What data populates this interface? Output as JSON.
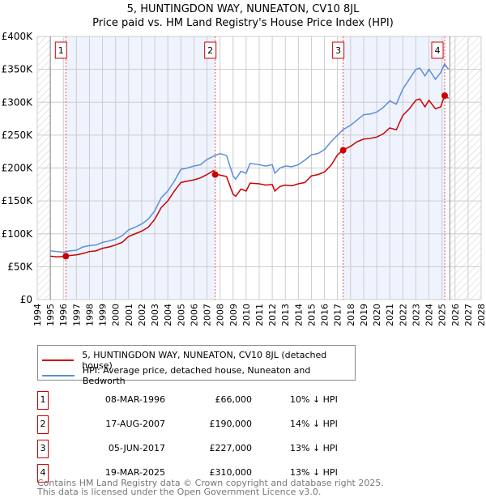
{
  "chart_data": {
    "type": "line",
    "title": "5, HUNTINGDON WAY, NUNEATON, CV10 8JL",
    "subtitle": "Price paid vs. HM Land Registry's House Price Index (HPI)",
    "xlim": [
      1994,
      2028
    ],
    "ylim": [
      0,
      400000
    ],
    "yticks": [
      {
        "v": 0,
        "label": "£0"
      },
      {
        "v": 50000,
        "label": "£50K"
      },
      {
        "v": 100000,
        "label": "£100K"
      },
      {
        "v": 150000,
        "label": "£150K"
      },
      {
        "v": 200000,
        "label": "£200K"
      },
      {
        "v": 250000,
        "label": "£250K"
      },
      {
        "v": 300000,
        "label": "£300K"
      },
      {
        "v": 350000,
        "label": "£350K"
      },
      {
        "v": 400000,
        "label": "£400K"
      }
    ],
    "xticks": [
      "1994",
      "1995",
      "1996",
      "1997",
      "1998",
      "1999",
      "2000",
      "2001",
      "2002",
      "2003",
      "2004",
      "2005",
      "2006",
      "2007",
      "2008",
      "2009",
      "2010",
      "2011",
      "2012",
      "2013",
      "2014",
      "2015",
      "2016",
      "2017",
      "2018",
      "2019",
      "2020",
      "2021",
      "2022",
      "2023",
      "2024",
      "2025",
      "2026",
      "2027",
      "2028"
    ],
    "grid": true,
    "data_range": [
      1995,
      2025.6
    ],
    "series": [
      {
        "name": "5, HUNTINGDON WAY, NUNEATON, CV10 8JL (detached house)",
        "color": "#cc0000",
        "x": [
          1995,
          1995.5,
          1996,
          1996.5,
          1997,
          1997.5,
          1998,
          1998.5,
          1999,
          1999.5,
          2000,
          2000.5,
          2001,
          2001.5,
          2002,
          2002.5,
          2003,
          2003.5,
          2004,
          2004.5,
          2005,
          2005.5,
          2006,
          2006.5,
          2007,
          2007.5,
          2007.8,
          2008.5,
          2009,
          2009.2,
          2009.6,
          2010,
          2010.3,
          2011,
          2011.5,
          2012,
          2012.2,
          2012.6,
          2013,
          2013.5,
          2014,
          2014.5,
          2015,
          2015.5,
          2016,
          2016.5,
          2017,
          2017.4,
          2018,
          2018.5,
          2019,
          2019.5,
          2020,
          2020.5,
          2021,
          2021.5,
          2022,
          2022.5,
          2023,
          2023.3,
          2023.7,
          2024,
          2024.5,
          2024.9,
          2025.2,
          2025.5
        ],
        "y": [
          66000,
          65000,
          65500,
          67000,
          68000,
          70000,
          73000,
          74000,
          78000,
          80000,
          83000,
          87000,
          96000,
          100000,
          104000,
          110000,
          122000,
          140000,
          150000,
          165000,
          178000,
          180000,
          182000,
          185000,
          190000,
          196000,
          190000,
          187000,
          160000,
          157000,
          168000,
          165000,
          177000,
          176000,
          174000,
          175000,
          165000,
          172000,
          174000,
          173000,
          176000,
          178000,
          188000,
          190000,
          194000,
          204000,
          220000,
          227000,
          233000,
          240000,
          244000,
          245000,
          247000,
          252000,
          261000,
          258000,
          280000,
          290000,
          303000,
          305000,
          293000,
          303000,
          290000,
          293000,
          310000,
          306000
        ]
      },
      {
        "name": "HPI: Average price, detached house, Nuneaton and Bedworth",
        "color": "#5b8fd6",
        "x": [
          1995,
          1995.5,
          1996,
          1996.5,
          1997,
          1997.5,
          1998,
          1998.5,
          1999,
          1999.5,
          2000,
          2000.5,
          2001,
          2001.5,
          2002,
          2002.5,
          2003,
          2003.5,
          2004,
          2004.5,
          2005,
          2005.5,
          2006,
          2006.5,
          2007,
          2007.5,
          2008,
          2008.5,
          2009,
          2009.2,
          2009.6,
          2010,
          2010.3,
          2011,
          2011.5,
          2012,
          2012.2,
          2012.6,
          2013,
          2013.5,
          2014,
          2014.5,
          2015,
          2015.5,
          2016,
          2016.5,
          2017,
          2017.4,
          2018,
          2018.5,
          2019,
          2019.5,
          2020,
          2020.5,
          2021,
          2021.5,
          2022,
          2022.5,
          2023,
          2023.3,
          2023.7,
          2024,
          2024.5,
          2024.9,
          2025.2,
          2025.5
        ],
        "y": [
          74000,
          73000,
          72000,
          74000,
          75000,
          80000,
          82000,
          83000,
          87000,
          89000,
          92000,
          97000,
          106000,
          110000,
          115000,
          122000,
          135000,
          155000,
          165000,
          180000,
          198000,
          200000,
          203000,
          205000,
          213000,
          218000,
          222000,
          219000,
          188000,
          183000,
          195000,
          192000,
          207000,
          205000,
          203000,
          205000,
          192000,
          200000,
          203000,
          202000,
          205000,
          212000,
          220000,
          222000,
          228000,
          240000,
          250000,
          258000,
          265000,
          273000,
          281000,
          282000,
          285000,
          292000,
          302000,
          297000,
          320000,
          335000,
          350000,
          352000,
          340000,
          350000,
          335000,
          345000,
          358000,
          350000
        ]
      }
    ],
    "sales": [
      {
        "label": "1",
        "x": 1996.19,
        "y": 66000,
        "date": "08-MAR-1996",
        "price": "£66,000",
        "hpi": "10% ↓ HPI"
      },
      {
        "label": "2",
        "x": 2007.63,
        "y": 190000,
        "date": "17-AUG-2007",
        "price": "£190,000",
        "hpi": "14% ↓ HPI"
      },
      {
        "label": "3",
        "x": 2017.43,
        "y": 227000,
        "date": "05-JUN-2017",
        "price": "£227,000",
        "hpi": "13% ↓ HPI"
      },
      {
        "label": "4",
        "x": 2025.21,
        "y": 310000,
        "date": "19-MAR-2025",
        "price": "£310,000",
        "hpi": "13% ↓ HPI"
      }
    ]
  },
  "footer": {
    "line1": "Contains HM Land Registry data © Crown copyright and database right 2025.",
    "line2": "This data is licensed under the Open Government Licence v3.0."
  }
}
